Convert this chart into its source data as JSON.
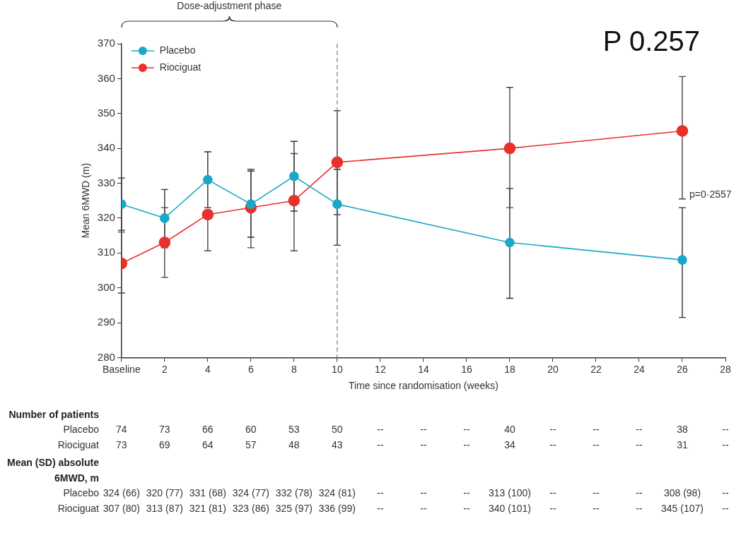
{
  "chart_data": {
    "type": "line",
    "title": "P 0.257",
    "xlabel": "Time since randomisation (weeks)",
    "ylabel": "Mean 6MWD (m)",
    "xlim": [
      0,
      28
    ],
    "xticks": [
      {
        "value": 0,
        "label": "Baseline"
      },
      2,
      4,
      6,
      8,
      10,
      12,
      14,
      16,
      18,
      20,
      22,
      24,
      26,
      28
    ],
    "ylim": [
      280,
      370
    ],
    "yticks": [
      280,
      290,
      300,
      310,
      320,
      330,
      340,
      350,
      360,
      370
    ],
    "legend": "top left",
    "marker": "circle",
    "line_style": "solid",
    "x": [
      0,
      2,
      4,
      6,
      8,
      10,
      18,
      26
    ],
    "series": [
      {
        "name": "Placebo",
        "color": "#1aa7c9",
        "values": [
          324,
          320,
          331,
          324,
          332,
          324,
          313,
          308
        ],
        "errors": [
          [
            316.5,
            331.5
          ],
          [
            311.5,
            328.2
          ],
          [
            323,
            339
          ],
          [
            314.5,
            333.5
          ],
          [
            322,
            342
          ],
          [
            312.2,
            334
          ],
          [
            297,
            328.5
          ],
          [
            291.5,
            323
          ]
        ]
      },
      {
        "name": "Riociguat",
        "color": "#e8312a",
        "values": [
          307,
          313,
          321,
          323,
          325,
          336,
          340,
          345
        ],
        "errors": [
          [
            298.5,
            316
          ],
          [
            303,
            323
          ],
          [
            310.6,
            321
          ],
          [
            311.5,
            334
          ],
          [
            310.6,
            338.5
          ],
          [
            321,
            350.8
          ],
          [
            323,
            357.5
          ],
          [
            325.5,
            360.6
          ]
        ]
      }
    ],
    "ref_lines": [
      {
        "axis": "x",
        "value": 10,
        "line_style": "dashed",
        "color": "#4a6a80"
      }
    ],
    "annotations": [
      "Dose-adjustment phase",
      "p=0·2557",
      "Number of patients",
      "Placebo",
      "74",
      "73",
      "66",
      "60",
      "53",
      "50",
      "--",
      "--",
      "--",
      "40",
      "--",
      "--",
      "--",
      "38",
      "--",
      "Riociguat",
      "73",
      "69",
      "64",
      "57",
      "48",
      "43",
      "--",
      "--",
      "--",
      "34",
      "--",
      "--",
      "--",
      "31",
      "--",
      "Mean (SD) absolute 6MWD, m",
      "Placebo",
      "324 (66)",
      "320 (77)",
      "331 (68)",
      "324 (77)",
      "332 (78)",
      "324 (81)",
      "--",
      "--",
      "--",
      "313 (100)",
      "--",
      "--",
      "--",
      "308 (98)",
      "--",
      "Riociguat",
      "307 (80)",
      "313 (87)",
      "321 (81)",
      "323 (86)",
      "325 (97)",
      "336 (99)",
      "--",
      "--",
      "--",
      "340 (101)",
      "--",
      "--",
      "--",
      "345 (107)",
      "--"
    ]
  }
}
